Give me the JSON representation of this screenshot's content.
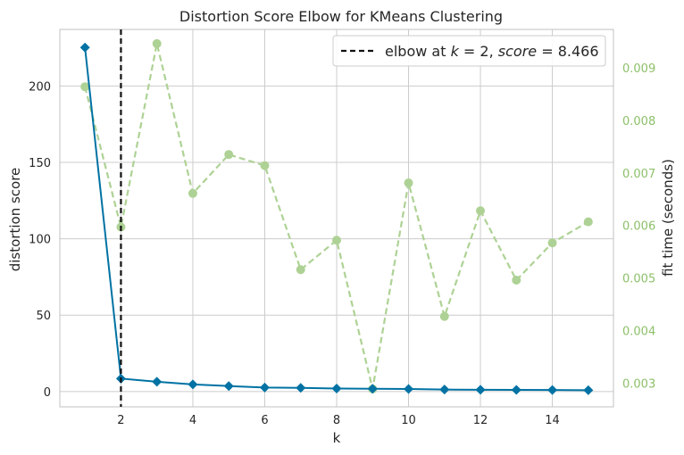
{
  "chart_data": {
    "type": "line",
    "title": "Distortion Score Elbow for KMeans Clustering",
    "xlabel": "k",
    "ylabel": "distortion score",
    "y2label": "fit time (seconds)",
    "xlim": [
      0.3,
      15.7
    ],
    "ylim": [
      -10,
      237
    ],
    "y2lim": [
      0.00255,
      0.00973
    ],
    "x_ticks": [
      2,
      4,
      6,
      8,
      10,
      12,
      14
    ],
    "y_ticks": [
      0,
      50,
      100,
      150,
      200
    ],
    "y2_ticks": [
      0.003,
      0.004,
      0.005,
      0.006,
      0.007,
      0.008,
      0.009
    ],
    "grid": true,
    "legend": {
      "placement": "top-right",
      "label_prefix": "elbow at ",
      "k_symbol": "k",
      "eq1": " = 2, ",
      "score_symbol": "score",
      "eq2": " = 8.466"
    },
    "elbow": {
      "k": 2,
      "score": 8.466
    },
    "x": [
      1,
      2,
      3,
      4,
      5,
      6,
      7,
      8,
      9,
      10,
      11,
      12,
      13,
      14,
      15
    ],
    "series": [
      {
        "name": "distortion score",
        "axis": "left",
        "values": [
          225.2,
          8.466,
          6.4,
          4.7,
          3.6,
          2.6,
          2.4,
          2.0,
          1.8,
          1.7,
          1.3,
          1.2,
          1.1,
          1.0,
          0.9
        ]
      },
      {
        "name": "fit time (seconds)",
        "axis": "right",
        "values": [
          0.00864,
          0.00597,
          0.00946,
          0.00661,
          0.00735,
          0.00714,
          0.00516,
          0.00572,
          0.00289,
          0.00681,
          0.00427,
          0.00628,
          0.00496,
          0.00567,
          0.00607
        ]
      }
    ],
    "colors": {
      "distortion": "#0072a3",
      "fit_time": "#8dc06a",
      "fit_time_line": "#aed295",
      "elbow": "#111111",
      "grid": "#cccccc",
      "axis_edge": "#c2c2c2"
    }
  }
}
